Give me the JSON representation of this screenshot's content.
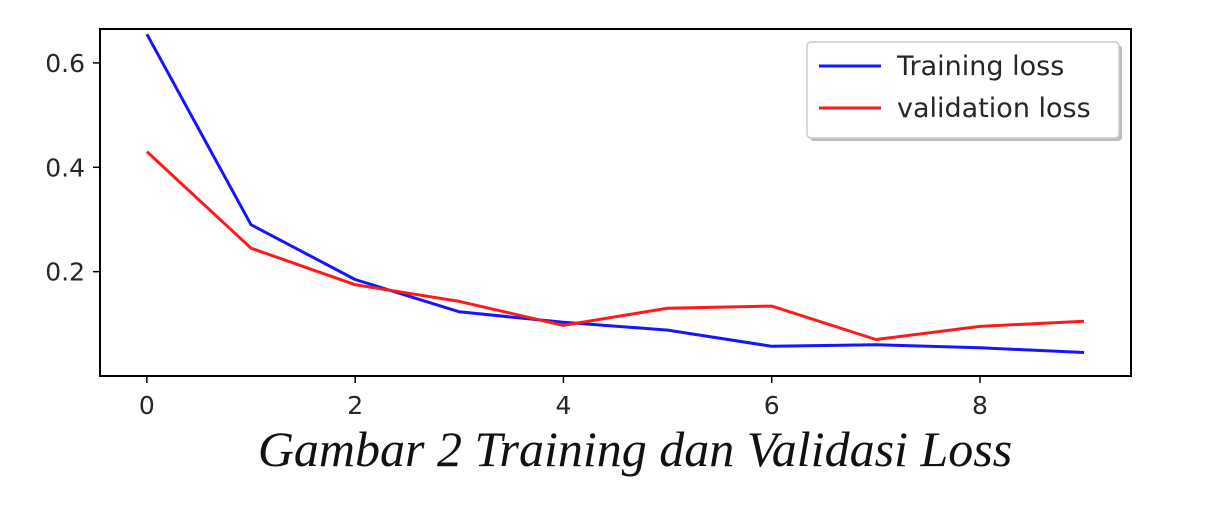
{
  "chart_data": {
    "type": "line",
    "x": [
      0,
      1,
      2,
      3,
      4,
      5,
      6,
      7,
      8,
      9
    ],
    "series": [
      {
        "name": "Training loss",
        "color": "#1515ff",
        "values": [
          0.655,
          0.29,
          0.185,
          0.123,
          0.103,
          0.088,
          0.057,
          0.06,
          0.054,
          0.045
        ]
      },
      {
        "name": "validation loss",
        "color": "#ff1a1a",
        "values": [
          0.43,
          0.245,
          0.175,
          0.143,
          0.097,
          0.13,
          0.134,
          0.07,
          0.095,
          0.105
        ]
      }
    ],
    "xlim": [
      -0.45,
      9.45
    ],
    "ylim": [
      0.0,
      0.665
    ],
    "xticks": [
      0,
      2,
      4,
      6,
      8
    ],
    "yticks": [
      0.2,
      0.4,
      0.6
    ],
    "xtick_labels": [
      "0",
      "2",
      "4",
      "6",
      "8"
    ],
    "ytick_labels": [
      "0.2",
      "0.4",
      "0.6"
    ],
    "legend_position": "top-right",
    "grid": false,
    "caption": "Gambar 2 Training dan Validasi Loss"
  }
}
